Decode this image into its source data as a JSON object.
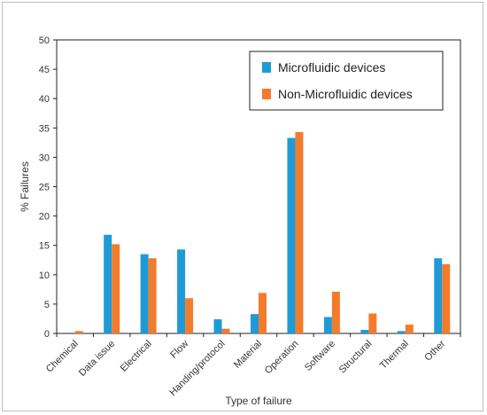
{
  "chart_data": {
    "type": "bar",
    "title": "",
    "xlabel": "Type of failure",
    "ylabel": "% Failures",
    "ylim": [
      0,
      50
    ],
    "yticks": [
      0,
      5,
      10,
      15,
      20,
      25,
      30,
      35,
      40,
      45,
      50
    ],
    "categories": [
      "Chemical",
      "Data issue",
      "Electrical",
      "Flow",
      "Handing/protocol",
      "Material",
      "Operation",
      "Software",
      "Structural",
      "Thermal",
      "Other"
    ],
    "series": [
      {
        "name": "Microfluidic devices",
        "color": "#1f9ad6",
        "values": [
          0,
          16.8,
          13.5,
          14.3,
          2.4,
          3.3,
          33.3,
          2.8,
          0.6,
          0.4,
          12.8
        ]
      },
      {
        "name": "Non-Microfluidic devices",
        "color": "#f27c2c",
        "values": [
          0.4,
          15.2,
          12.8,
          6.0,
          0.8,
          6.9,
          34.3,
          7.1,
          3.4,
          1.5,
          11.8
        ]
      }
    ],
    "grid": false,
    "legend_position": "top-right"
  }
}
